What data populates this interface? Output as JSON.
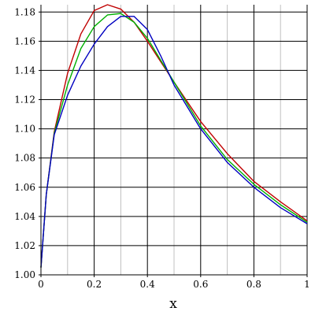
{
  "chart_data": {
    "type": "line",
    "xlabel": "x",
    "ylabel": "",
    "xlim": [
      0,
      1
    ],
    "ylim": [
      1.0,
      1.185
    ],
    "grid": true,
    "x_ticks": [
      "0",
      "0.2",
      "0.4",
      "0.6",
      "0.8",
      "1"
    ],
    "x_tick_values": [
      0,
      0.2,
      0.4,
      0.6,
      0.8,
      1.0
    ],
    "y_ticks": [
      "1.00",
      "1.02",
      "1.04",
      "1.06",
      "1.08",
      "1.10",
      "1.12",
      "1.14",
      "1.16",
      "1.18"
    ],
    "y_tick_values": [
      1.0,
      1.02,
      1.04,
      1.06,
      1.08,
      1.1,
      1.12,
      1.14,
      1.16,
      1.18
    ],
    "series": [
      {
        "color": "#c00000",
        "x": [
          0,
          0.02,
          0.05,
          0.1,
          0.15,
          0.2,
          0.25,
          0.3,
          0.35,
          0.4,
          0.45,
          0.5,
          0.6,
          0.7,
          0.8,
          0.9,
          1.0
        ],
        "y": [
          1.005,
          1.055,
          1.098,
          1.138,
          1.165,
          1.181,
          1.185,
          1.182,
          1.173,
          1.16,
          1.146,
          1.132,
          1.105,
          1.083,
          1.064,
          1.05,
          1.037
        ]
      },
      {
        "color": "#00b000",
        "x": [
          0,
          0.02,
          0.05,
          0.1,
          0.15,
          0.2,
          0.25,
          0.3,
          0.35,
          0.4,
          0.45,
          0.5,
          0.6,
          0.7,
          0.8,
          0.9,
          1.0
        ],
        "y": [
          1.005,
          1.055,
          1.097,
          1.13,
          1.155,
          1.17,
          1.178,
          1.179,
          1.173,
          1.162,
          1.147,
          1.132,
          1.102,
          1.079,
          1.062,
          1.048,
          1.036
        ]
      },
      {
        "color": "#0000c0",
        "x": [
          0,
          0.02,
          0.05,
          0.1,
          0.15,
          0.2,
          0.25,
          0.3,
          0.35,
          0.4,
          0.45,
          0.5,
          0.6,
          0.7,
          0.8,
          0.9,
          1.0
        ],
        "y": [
          1.005,
          1.055,
          1.096,
          1.123,
          1.143,
          1.158,
          1.17,
          1.177,
          1.177,
          1.168,
          1.15,
          1.13,
          1.1,
          1.077,
          1.06,
          1.046,
          1.035
        ]
      }
    ]
  }
}
